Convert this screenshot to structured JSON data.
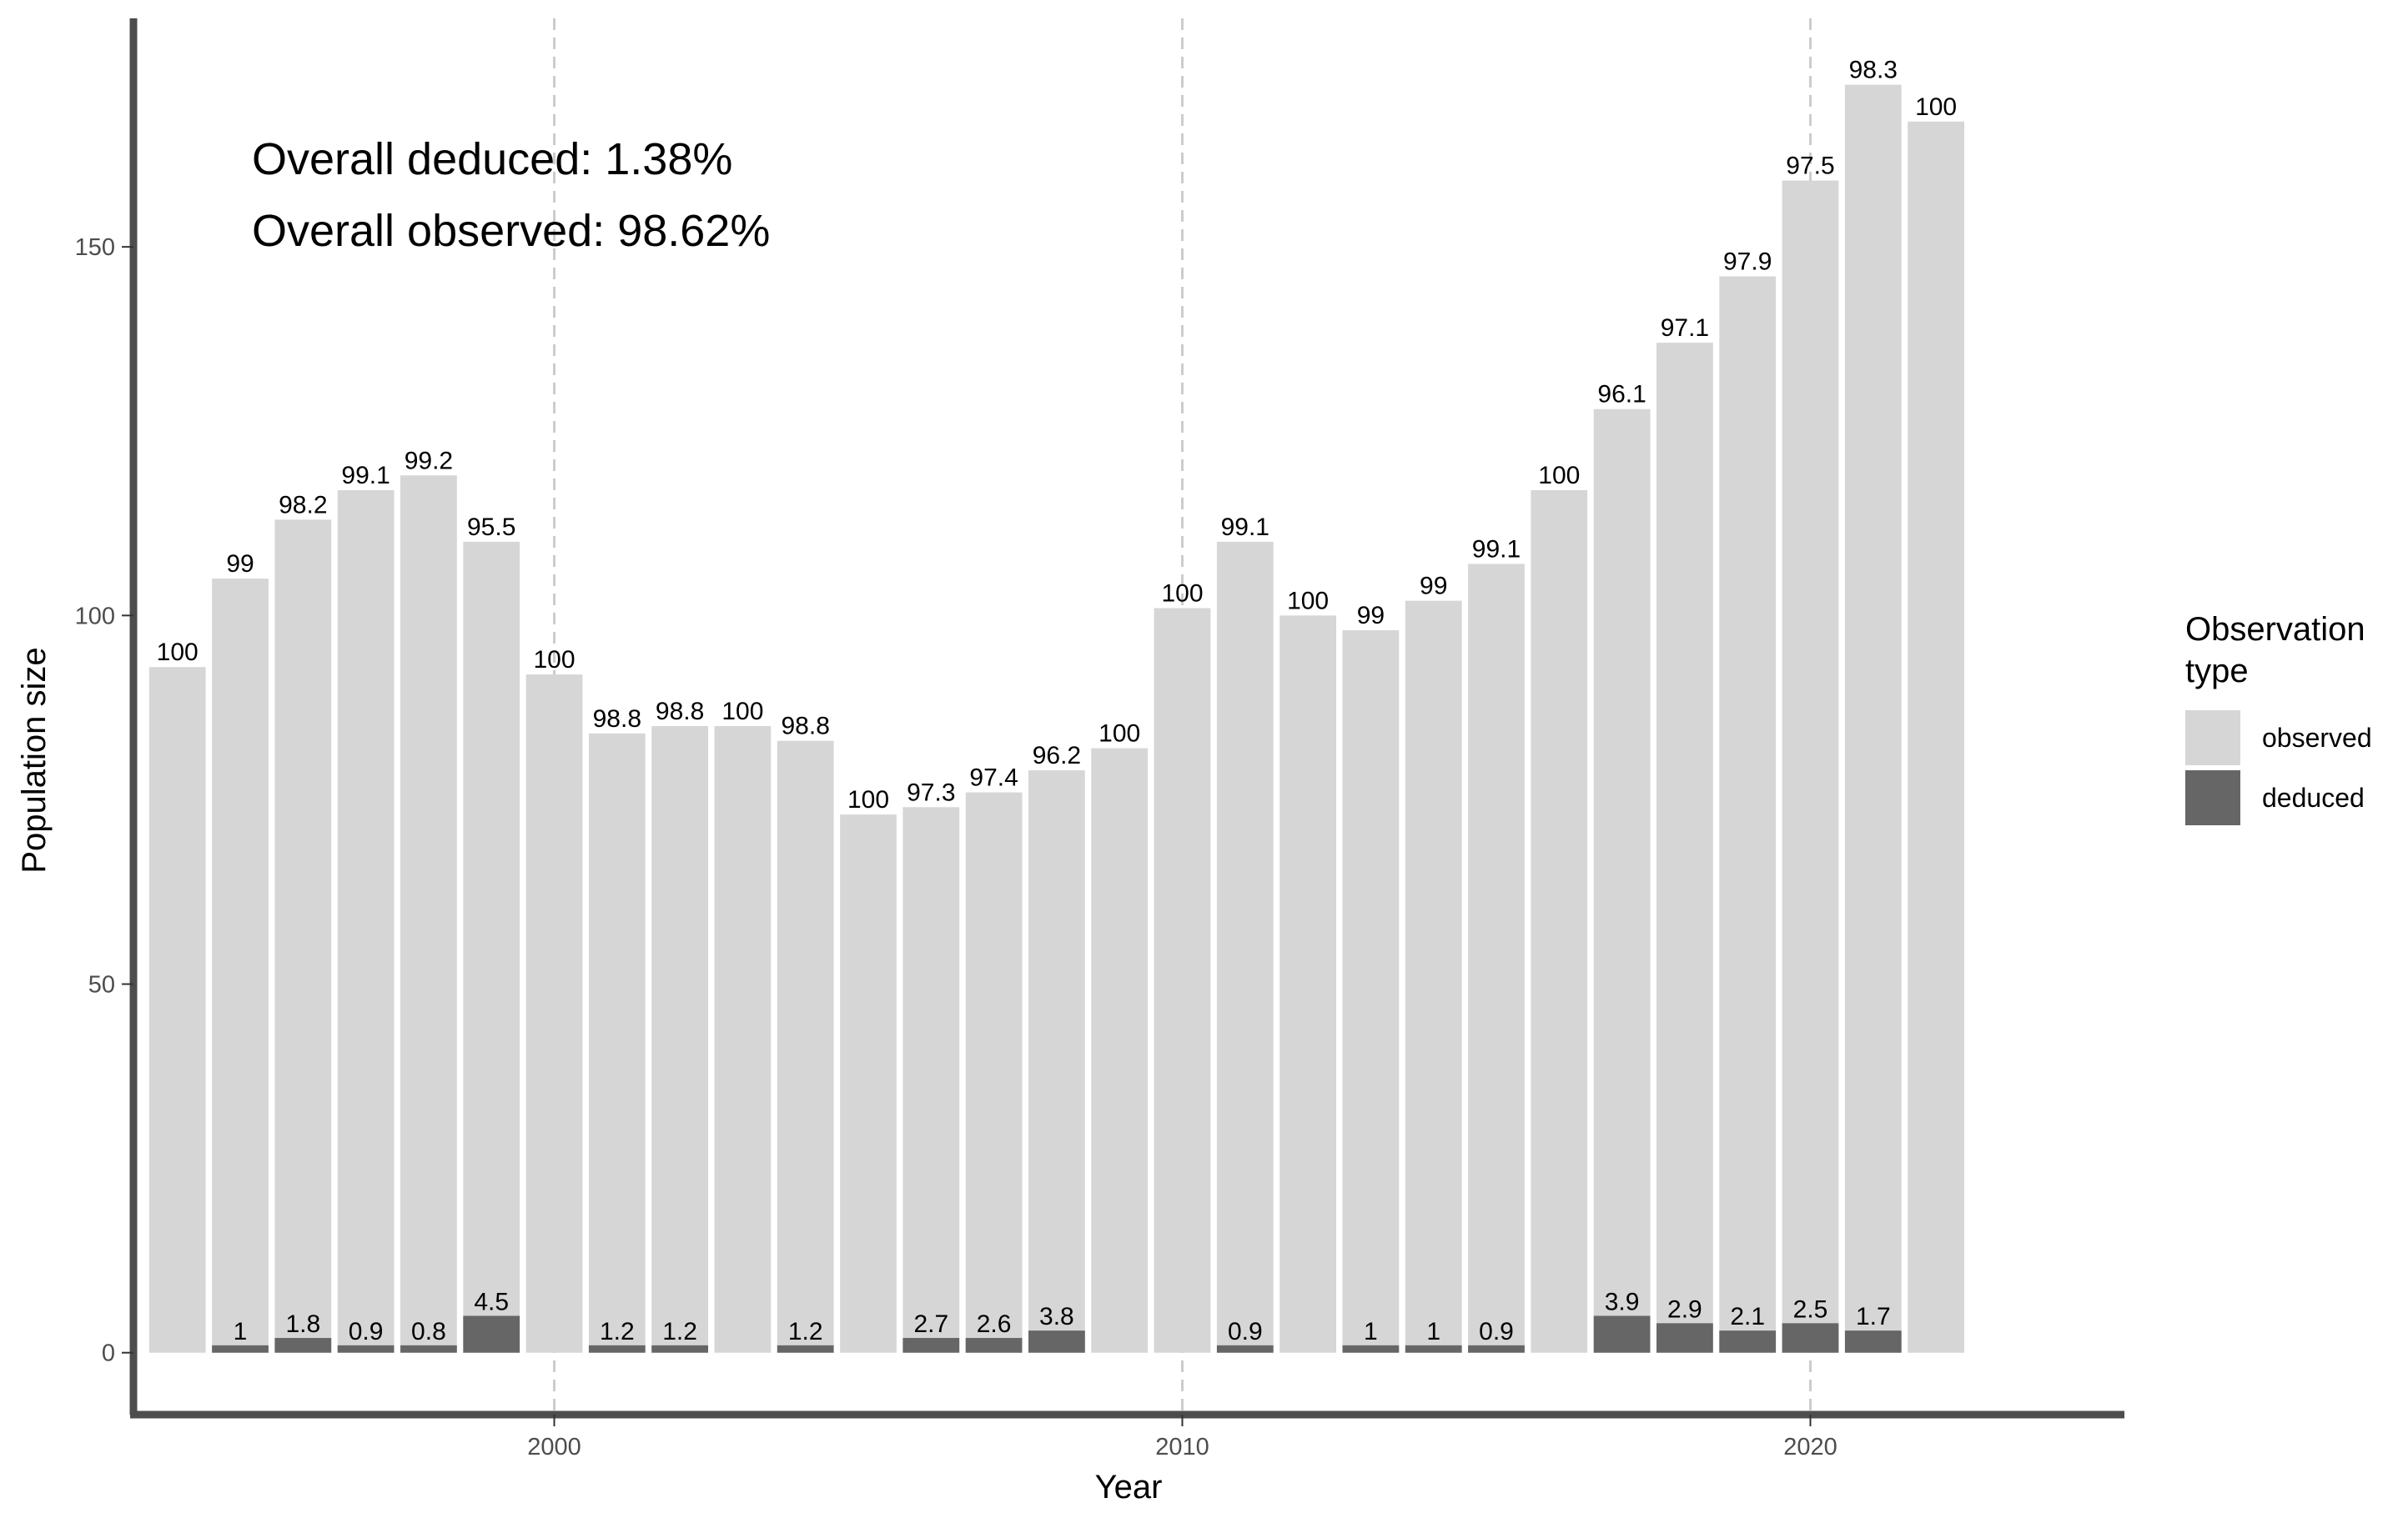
{
  "chart_data": {
    "type": "bar",
    "stacking": "overlaid",
    "xlabel": "Year",
    "ylabel": "Population size",
    "xlim": [
      1993.3,
      2025.0
    ],
    "ylim": [
      -8.4,
      181
    ],
    "x_ticks": [
      2000,
      2010,
      2020
    ],
    "y_ticks": [
      0,
      50,
      100,
      150
    ],
    "vlines": [
      2000,
      2010,
      2020
    ],
    "grid": false,
    "legend_position": "right",
    "colors": {
      "observed": "#d6d6d6",
      "deduced": "#666666",
      "axis": "#4d4d4d",
      "vline": "#cccccc"
    },
    "categories": [
      1994,
      1995,
      1996,
      1997,
      1998,
      1999,
      2000,
      2001,
      2002,
      2003,
      2004,
      2005,
      2006,
      2007,
      2008,
      2009,
      2010,
      2011,
      2012,
      2013,
      2014,
      2015,
      2016,
      2017,
      2018,
      2019,
      2020,
      2021,
      2022
    ],
    "series": [
      {
        "name": "observed",
        "values": [
          93,
          105,
          113,
          117,
          119,
          110,
          92,
          84,
          85,
          85,
          83,
          73,
          74,
          76,
          79,
          82,
          101,
          110,
          100,
          98,
          102,
          107,
          117,
          128,
          137,
          146,
          159,
          172,
          167
        ],
        "labels": [
          "100",
          "99",
          "98.2",
          "99.1",
          "99.2",
          "95.5",
          "100",
          "98.8",
          "98.8",
          "100",
          "98.8",
          "100",
          "97.3",
          "97.4",
          "96.2",
          "100",
          "100",
          "99.1",
          "100",
          "99",
          "99",
          "99.1",
          "100",
          "96.1",
          "97.1",
          "97.9",
          "97.5",
          "98.3",
          "100"
        ]
      },
      {
        "name": "deduced",
        "values": [
          0,
          1,
          2,
          1,
          1,
          5,
          0,
          1,
          1,
          0,
          1,
          0,
          2,
          2,
          3,
          0,
          0,
          1,
          0,
          1,
          1,
          1,
          0,
          5,
          4,
          3,
          4,
          3,
          0
        ],
        "labels": [
          "",
          "1",
          "1.8",
          "0.9",
          "0.8",
          "4.5",
          "",
          "1.2",
          "1.2",
          "",
          "1.2",
          "",
          "2.7",
          "2.6",
          "3.8",
          "",
          "",
          "0.9",
          "",
          "1",
          "1",
          "0.9",
          "",
          "3.9",
          "2.9",
          "2.1",
          "2.5",
          "1.7",
          ""
        ]
      }
    ],
    "annotations": [
      "Overall deduced: 1.38%",
      "Overall observed: 98.62%"
    ],
    "legend": {
      "title_line1": "Observation",
      "title_line2": "type",
      "items": [
        "observed",
        "deduced"
      ]
    }
  }
}
